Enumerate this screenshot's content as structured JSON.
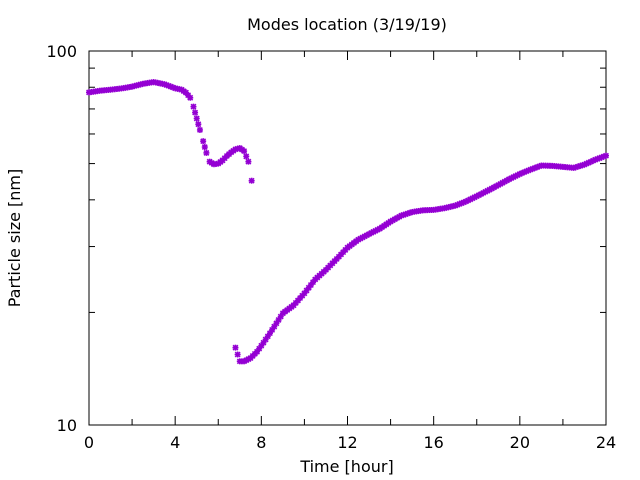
{
  "chart_data": {
    "type": "scatter",
    "title": "Modes location (3/19/19)",
    "xlabel": "Time [hour]",
    "ylabel": "Particle size [nm]",
    "xlim": [
      0,
      24
    ],
    "ylim": [
      10,
      100
    ],
    "yscale": "log",
    "xticks": [
      "0",
      "4",
      "8",
      "12",
      "16",
      "20",
      "24"
    ],
    "yticks": [
      "10",
      "100"
    ],
    "grid": false,
    "marker_color": "#9400d3",
    "series": [
      {
        "points": [
          [
            0.0,
            77.5
          ],
          [
            0.5,
            78.3
          ],
          [
            1.0,
            78.8
          ],
          [
            1.5,
            79.4
          ],
          [
            2.0,
            80.3
          ],
          [
            2.5,
            81.7
          ],
          [
            3.0,
            82.6
          ],
          [
            3.5,
            81.5
          ],
          [
            4.0,
            79.5
          ],
          [
            4.3,
            78.8
          ],
          [
            4.5,
            77.4
          ],
          [
            4.7,
            75.0
          ],
          [
            4.85,
            71.0
          ],
          [
            5.0,
            66.0
          ],
          [
            5.15,
            61.5
          ],
          [
            5.3,
            57.4
          ],
          [
            5.45,
            53.4
          ],
          [
            5.6,
            50.6
          ],
          [
            5.8,
            49.8
          ],
          [
            6.0,
            50.0
          ],
          [
            6.2,
            51.0
          ],
          [
            6.4,
            52.4
          ],
          [
            6.6,
            53.6
          ],
          [
            6.8,
            54.6
          ],
          [
            7.0,
            55.0
          ],
          [
            7.2,
            54.0
          ],
          [
            7.4,
            50.6
          ],
          [
            7.55,
            45.0
          ]
        ]
      },
      {
        "points": [
          [
            6.8,
            16.1
          ],
          [
            7.0,
            14.8
          ],
          [
            7.2,
            14.8
          ],
          [
            7.5,
            15.1
          ],
          [
            7.8,
            15.7
          ],
          [
            8.1,
            16.6
          ],
          [
            8.4,
            17.6
          ],
          [
            8.7,
            18.7
          ],
          [
            9.0,
            19.9
          ],
          [
            9.5,
            20.9
          ],
          [
            10.0,
            22.5
          ],
          [
            10.5,
            24.5
          ],
          [
            11.0,
            26.0
          ],
          [
            11.5,
            27.8
          ],
          [
            12.0,
            29.8
          ],
          [
            12.5,
            31.3
          ],
          [
            13.0,
            32.4
          ],
          [
            13.5,
            33.5
          ],
          [
            14.0,
            35.0
          ],
          [
            14.5,
            36.3
          ],
          [
            15.0,
            37.1
          ],
          [
            15.5,
            37.5
          ],
          [
            16.0,
            37.6
          ],
          [
            16.5,
            38.0
          ],
          [
            17.0,
            38.6
          ],
          [
            17.5,
            39.6
          ],
          [
            18.0,
            40.9
          ],
          [
            18.5,
            42.3
          ],
          [
            19.0,
            43.8
          ],
          [
            19.5,
            45.4
          ],
          [
            20.0,
            46.9
          ],
          [
            20.5,
            48.2
          ],
          [
            21.0,
            49.4
          ],
          [
            21.5,
            49.3
          ],
          [
            22.0,
            49.0
          ],
          [
            22.5,
            48.7
          ],
          [
            23.0,
            49.7
          ],
          [
            23.5,
            51.2
          ],
          [
            24.0,
            52.5
          ]
        ]
      }
    ]
  }
}
